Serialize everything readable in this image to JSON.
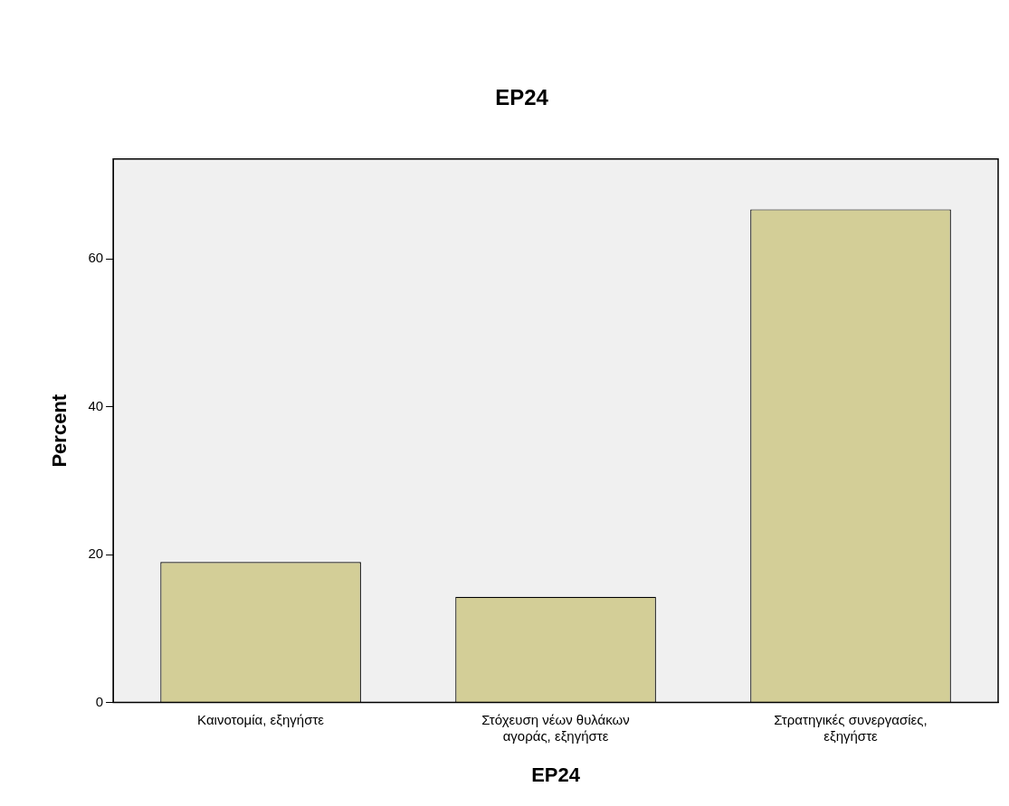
{
  "chart_data": {
    "type": "bar",
    "title": "EP24",
    "xlabel": "EP24",
    "ylabel": "Percent",
    "categories": [
      "Καινοτομία, εξηγήστε",
      "Στόχευση νέων θυλάκων αγοράς, εξηγήστε",
      "Στρατηγικές συνεργασίες, εξηγήστε"
    ],
    "values": [
      19.0,
      14.3,
      66.7
    ],
    "color": "#d3ce97",
    "ylim": [
      0,
      73.5
    ],
    "yticks": [
      0,
      20,
      40,
      60
    ],
    "grid": false,
    "legend": false
  }
}
